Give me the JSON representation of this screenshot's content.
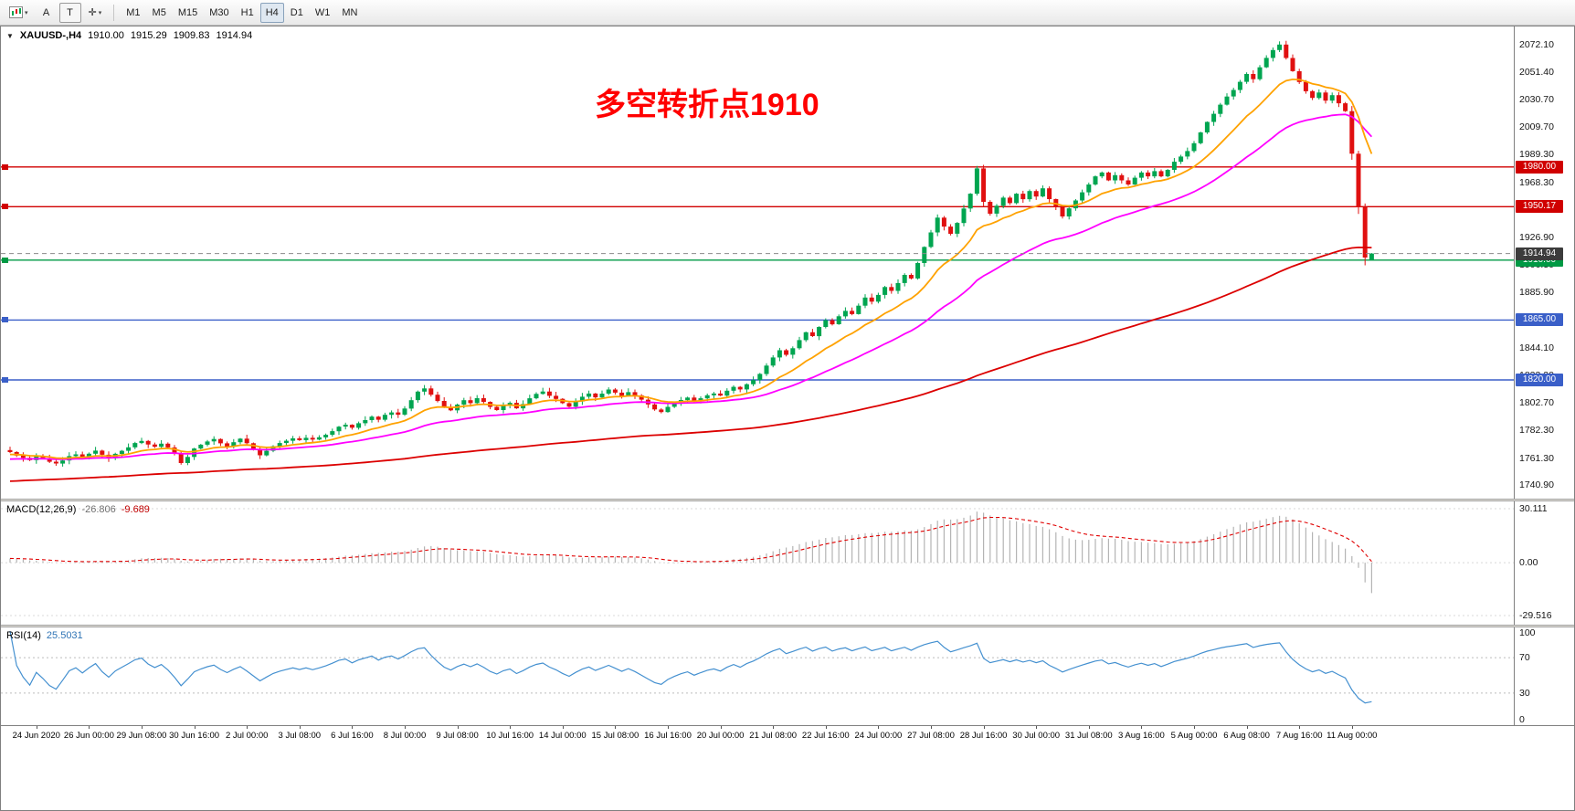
{
  "toolbar": {
    "a_button": "A",
    "t_button": "T",
    "timeframes": [
      "M1",
      "M5",
      "M15",
      "M30",
      "H1",
      "H4",
      "D1",
      "W1",
      "MN"
    ],
    "active_timeframe": "H4"
  },
  "header": {
    "symbol": "XAUUSD-,H4",
    "open": "1910.00",
    "high": "1915.29",
    "low": "1909.83",
    "close": "1914.94"
  },
  "annotation": {
    "text": "多空转折点1910",
    "color": "#FF0000"
  },
  "indicators": {
    "macd": {
      "label": "MACD(12,26,9)",
      "main_value": "-26.806",
      "signal_value": "-9.689",
      "fast": 12,
      "slow": 26,
      "signal": 9,
      "scale_ticks": [
        "30.111",
        "0.00",
        "-29.516"
      ],
      "scale_values": [
        30.111,
        0,
        -29.516
      ]
    },
    "rsi": {
      "label": "RSI(14)",
      "value": "25.5031",
      "period": 14,
      "scale_ticks": [
        "100",
        "70",
        "30",
        "0"
      ],
      "scale_values": [
        100,
        70,
        30,
        0
      ],
      "levels": [
        70,
        30
      ]
    }
  },
  "colors": {
    "candle_up": "#00A550",
    "candle_down": "#E01010",
    "ma_fast": "#FFA200",
    "ma_mid": "#FF00FF",
    "ma_slow": "#DC0000",
    "macd_histogram": "#B4B4B4",
    "macd_signal": "#E00000",
    "rsi_line": "#4490D0",
    "hline_red": "#D00000",
    "hline_green": "#009944",
    "hline_blue": "#3A5FC8",
    "current_badge": "#3C3C3C"
  },
  "chart_data": {
    "type": "candlestick",
    "symbol": "XAUUSD",
    "timeframe": "H4",
    "y_range": [
      1737,
      2080
    ],
    "price_ticks": [
      2072.1,
      2051.4,
      2030.7,
      2009.7,
      1989.3,
      1968.3,
      1947.9,
      1926.9,
      1906.3,
      1885.9,
      1844.1,
      1823.3,
      1802.7,
      1782.3,
      1761.3,
      1740.9
    ],
    "hlines": [
      {
        "price": 1980.0,
        "label": "1980.00",
        "color_key": "hline_red"
      },
      {
        "price": 1950.17,
        "label": "1950.17",
        "color_key": "hline_red"
      },
      {
        "price": 1910.0,
        "label": "1910.00",
        "color_key": "hline_green"
      },
      {
        "price": 1865.0,
        "label": "1865.00",
        "color_key": "hline_blue"
      },
      {
        "price": 1820.0,
        "label": "1820.00",
        "color_key": "hline_blue"
      }
    ],
    "current_price": 1914.94,
    "current_price_label": "1914.94",
    "ma_periods": {
      "fast": 13,
      "mid": 34,
      "slow": 150
    },
    "x_label_first_bar": 4,
    "x_label_step": 8,
    "x_labels": [
      "24 Jun 2020",
      "26 Jun 00:00",
      "29 Jun 08:00",
      "30 Jun 16:00",
      "2 Jul 00:00",
      "3 Jul 08:00",
      "6 Jul 16:00",
      "8 Jul 00:00",
      "9 Jul 08:00",
      "10 Jul 16:00",
      "14 Jul 00:00",
      "15 Jul 08:00",
      "16 Jul 16:00",
      "20 Jul 00:00",
      "21 Jul 08:00",
      "22 Jul 16:00",
      "24 Jul 00:00",
      "27 Jul 08:00",
      "28 Jul 16:00",
      "30 Jul 00:00",
      "31 Jul 08:00",
      "3 Aug 16:00",
      "5 Aug 00:00",
      "6 Aug 08:00",
      "7 Aug 16:00",
      "11 Aug 00:00"
    ],
    "closes": [
      1765.8,
      1763.2,
      1761.5,
      1759.8,
      1762.4,
      1760.9,
      1758.6,
      1757.2,
      1759.5,
      1762.8,
      1764.1,
      1762.3,
      1764.6,
      1766.9,
      1763.8,
      1761.2,
      1764.5,
      1766.8,
      1769.4,
      1772.6,
      1774.2,
      1771.5,
      1769.8,
      1772.1,
      1769.3,
      1764.8,
      1757.6,
      1762.2,
      1768.5,
      1771.4,
      1773.8,
      1775.6,
      1772.4,
      1769.9,
      1773.2,
      1775.9,
      1772.5,
      1768.3,
      1763.4,
      1766.8,
      1770.2,
      1772.6,
      1774.3,
      1776.1,
      1774.8,
      1776.5,
      1775.2,
      1776.9,
      1778.8,
      1781.5,
      1784.9,
      1786.3,
      1784.1,
      1787.5,
      1789.8,
      1792.4,
      1790.1,
      1793.8,
      1795.6,
      1793.9,
      1798.5,
      1804.8,
      1811.2,
      1813.6,
      1808.9,
      1804.2,
      1799.8,
      1797.2,
      1801.5,
      1804.8,
      1802.6,
      1806.3,
      1803.5,
      1799.8,
      1797.4,
      1800.9,
      1802.8,
      1798.7,
      1801.9,
      1806.2,
      1809.5,
      1811.3,
      1808.1,
      1805.8,
      1802.6,
      1799.9,
      1803.8,
      1807.4,
      1809.8,
      1806.9,
      1809.7,
      1812.8,
      1810.5,
      1807.9,
      1810.8,
      1808.4,
      1805.2,
      1801.6,
      1797.8,
      1795.9,
      1799.8,
      1802.5,
      1804.9,
      1806.8,
      1803.9,
      1806.2,
      1808.5,
      1809.8,
      1808.2,
      1811.9,
      1814.8,
      1812.9,
      1816.8,
      1819.9,
      1824.5,
      1830.8,
      1836.9,
      1842.3,
      1838.9,
      1843.8,
      1849.9,
      1855.8,
      1852.9,
      1859.8,
      1864.9,
      1861.8,
      1867.8,
      1871.9,
      1869.5,
      1875.8,
      1881.9,
      1878.8,
      1883.9,
      1889.8,
      1886.9,
      1892.8,
      1898.9,
      1896.2,
      1907.8,
      1919.9,
      1930.8,
      1941.9,
      1935.2,
      1929.8,
      1937.9,
      1948.8,
      1959.9,
      1978.9,
      1953.8,
      1944.9,
      1950.8,
      1956.9,
      1952.8,
      1959.9,
      1955.8,
      1961.9,
      1957.8,
      1963.9,
      1955.8,
      1949.9,
      1942.8,
      1948.9,
      1954.8,
      1960.9,
      1966.8,
      1972.9,
      1975.8,
      1969.9,
      1973.8,
      1969.9,
      1966.8,
      1971.9,
      1975.8,
      1972.9,
      1976.8,
      1972.9,
      1977.8,
      1983.9,
      1987.8,
      1991.9,
      1997.8,
      2005.9,
      2013.8,
      2019.9,
      2026.8,
      2032.9,
      2037.8,
      2043.9,
      2049.8,
      2045.9,
      2054.8,
      2061.9,
      2067.8,
      2071.9,
      2061.8,
      2051.9,
      2043.8,
      2036.9,
      2031.8,
      2035.9,
      2029.8,
      2033.9,
      2027.8,
      2021.9,
      1989.9,
      1949.8,
      1911.9,
      1914.94
    ],
    "last_ohlc": [
      1910.0,
      1915.29,
      1909.83,
      1914.94
    ]
  }
}
